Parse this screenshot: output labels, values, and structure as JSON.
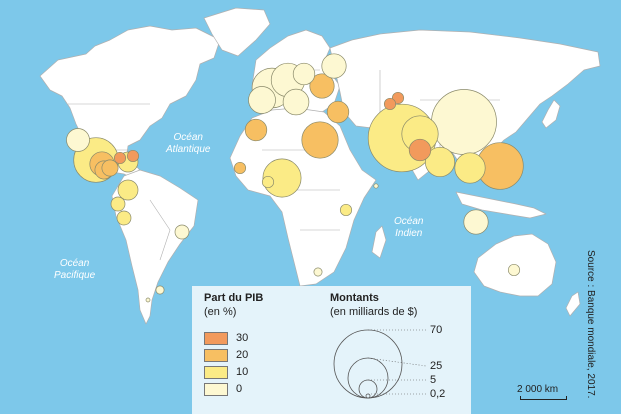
{
  "ocean_labels": {
    "pacific_ne": [
      "Océan",
      "Pacifique"
    ],
    "atlantic": [
      "Océan",
      "Atlantique"
    ],
    "indian": [
      "Océan",
      "Indien"
    ],
    "pacific_sw": [
      "Océan",
      "Pacifique"
    ]
  },
  "legend": {
    "share_title": "Part du PIB",
    "share_unit": "(en %)",
    "share_classes": [
      {
        "label": "30",
        "color": "#f29a5c"
      },
      {
        "label": "20",
        "color": "#f7bf62"
      },
      {
        "label": "10",
        "color": "#fbeb86"
      },
      {
        "label": "0",
        "color": "#fdf8d2"
      }
    ],
    "amount_title": "Montants",
    "amount_unit": "(en milliards de $)",
    "amount_values": [
      "70",
      "25",
      "5",
      "0,2"
    ]
  },
  "scale_label": "2 000 km",
  "source": "Source : Banque mondiale, 2017.",
  "colors": {
    "ocean": "#7dc8ea",
    "land": "#ffffff",
    "border": "#b0b0b0",
    "legend_bg": "#e4f3fa",
    "symbol_outline": "#8a8a6a"
  },
  "symbols": [
    {
      "place": "USA",
      "cls": 0,
      "v": 8
    },
    {
      "place": "Mexique",
      "cls": 1,
      "v": 30
    },
    {
      "place": "Guatemala",
      "cls": 2,
      "v": 9
    },
    {
      "place": "Honduras",
      "cls": 2,
      "v": 4
    },
    {
      "place": "Salvador",
      "cls": 2,
      "v": 5
    },
    {
      "place": "Haïti",
      "cls": 4,
      "v": 2
    },
    {
      "place": "Rép. dominicaine",
      "cls": 1,
      "v": 6
    },
    {
      "place": "Jamaïque",
      "cls": 3,
      "v": 2
    },
    {
      "place": "Colombie",
      "cls": 1,
      "v": 6
    },
    {
      "place": "Équateur",
      "cls": 1,
      "v": 3
    },
    {
      "place": "Pérou",
      "cls": 1,
      "v": 3
    },
    {
      "place": "Brésil",
      "cls": 0,
      "v": 3
    },
    {
      "place": "Argentine",
      "cls": 0,
      "v": 1
    },
    {
      "place": "Chili",
      "cls": 0,
      "v": 0.2
    },
    {
      "place": "Sénégal",
      "cls": 2,
      "v": 2
    },
    {
      "place": "Ghana",
      "cls": 1,
      "v": 2
    },
    {
      "place": "Nigeria",
      "cls": 1,
      "v": 22
    },
    {
      "place": "Égypte",
      "cls": 2,
      "v": 20
    },
    {
      "place": "Maroc",
      "cls": 2,
      "v": 7
    },
    {
      "place": "Kenya",
      "cls": 1,
      "v": 2
    },
    {
      "place": "Afrique du Sud",
      "cls": 0,
      "v": 1
    },
    {
      "place": "France",
      "cls": 0,
      "v": 24
    },
    {
      "place": "Allemagne",
      "cls": 0,
      "v": 17
    },
    {
      "place": "Italie",
      "cls": 0,
      "v": 10
    },
    {
      "place": "Espagne",
      "cls": 0,
      "v": 11
    },
    {
      "place": "Pologne",
      "cls": 0,
      "v": 7
    },
    {
      "place": "Ukraine",
      "cls": 2,
      "v": 9
    },
    {
      "place": "Russie",
      "cls": 0,
      "v": 9
    },
    {
      "place": "Kirghizstan",
      "cls": 4,
      "v": 2
    },
    {
      "place": "Tadjikistan",
      "cls": 4,
      "v": 2
    },
    {
      "place": "Liban",
      "cls": 2,
      "v": 7
    },
    {
      "place": "Inde",
      "cls": 1,
      "v": 69
    },
    {
      "place": "Pakistan",
      "cls": 1,
      "v": 20
    },
    {
      "place": "Népal",
      "cls": 4,
      "v": 7
    },
    {
      "place": "Bangladesh",
      "cls": 1,
      "v": 13
    },
    {
      "place": "Chine",
      "cls": 0,
      "v": 64
    },
    {
      "place": "Philippines",
      "cls": 2,
      "v": 33
    },
    {
      "place": "Vietnam",
      "cls": 1,
      "v": 14
    },
    {
      "place": "Indonésie",
      "cls": 0,
      "v": 9
    },
    {
      "place": "Australie",
      "cls": 0,
      "v": 2
    },
    {
      "place": "Arabie saoudite",
      "cls": 0,
      "v": 0.3
    }
  ]
}
